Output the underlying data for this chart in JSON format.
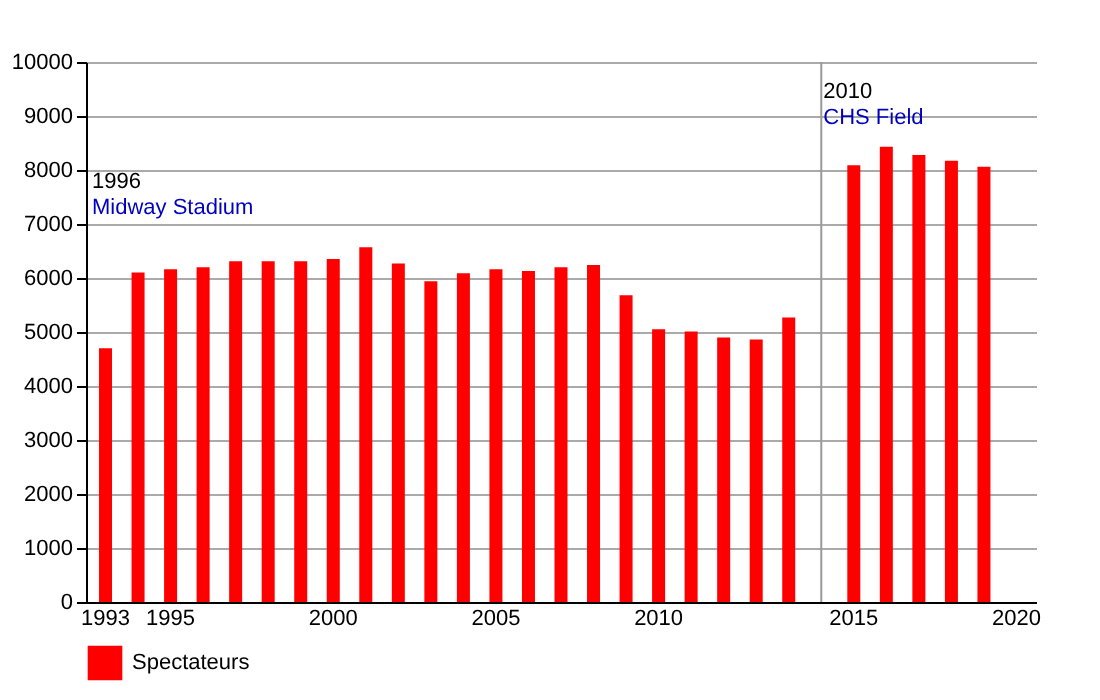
{
  "chart_data": {
    "type": "bar",
    "categories": [
      "1993",
      null,
      "1995",
      null,
      null,
      null,
      null,
      "2000",
      null,
      null,
      null,
      null,
      "2005",
      null,
      null,
      null,
      null,
      "2010",
      null,
      null,
      null,
      null,
      null,
      "2015",
      null,
      null,
      null,
      null,
      "2020"
    ],
    "series": [
      {
        "name": "Spectateurs",
        "color": "#ff0000",
        "values": [
          4700,
          6100,
          6160,
          6200,
          6310,
          6310,
          6310,
          6350,
          6570,
          6270,
          5940,
          6090,
          6160,
          6130,
          6200,
          6240,
          5680,
          5050,
          5010,
          4900,
          4860,
          5270,
          null,
          8090,
          8430,
          8280,
          8170,
          8060,
          null
        ]
      }
    ],
    "ylim": [
      0,
      10000
    ],
    "yticks": [
      0,
      1000,
      2000,
      3000,
      4000,
      5000,
      6000,
      7000,
      8000,
      9000,
      10000
    ],
    "grid": "y",
    "legend": "bottom left",
    "annotations": [
      "1996",
      "Midway Stadium",
      "2010",
      "CHS Field"
    ]
  }
}
